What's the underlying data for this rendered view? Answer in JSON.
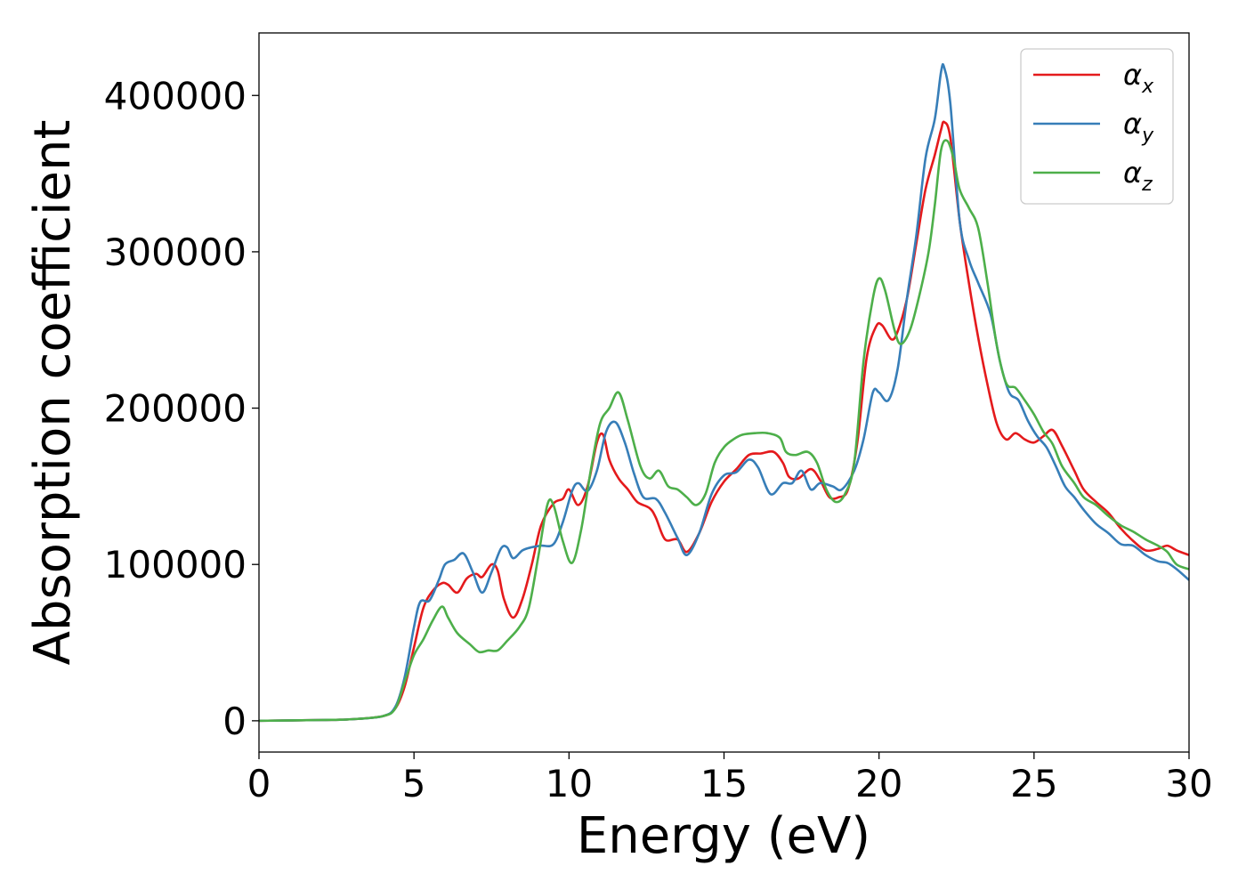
{
  "chart_data": {
    "type": "line",
    "title": "",
    "xlabel": "Energy (eV)",
    "ylabel": "Absorption coefficient",
    "xlim": [
      0,
      30
    ],
    "ylim": [
      -20000,
      440000
    ],
    "xticks": [
      0,
      5,
      10,
      15,
      20,
      25,
      30
    ],
    "yticks": [
      0,
      100000,
      200000,
      300000,
      400000
    ],
    "xtick_labels": [
      "0",
      "5",
      "10",
      "15",
      "20",
      "25",
      "30"
    ],
    "ytick_labels": [
      "0",
      "100000",
      "200000",
      "300000",
      "400000"
    ],
    "grid": false,
    "legend": {
      "position": "top-right"
    },
    "series": [
      {
        "name": "αx",
        "symbol": "α",
        "subscript": "x",
        "color": "#e41a1c",
        "points": [
          [
            0,
            0
          ],
          [
            2,
            500
          ],
          [
            3,
            1000
          ],
          [
            4,
            3000
          ],
          [
            4.4,
            8000
          ],
          [
            4.7,
            22000
          ],
          [
            5.0,
            47000
          ],
          [
            5.3,
            72000
          ],
          [
            5.6,
            83000
          ],
          [
            5.9,
            88000
          ],
          [
            6.1,
            87000
          ],
          [
            6.4,
            82000
          ],
          [
            6.7,
            91000
          ],
          [
            7.0,
            94000
          ],
          [
            7.2,
            92000
          ],
          [
            7.5,
            100000
          ],
          [
            7.7,
            96000
          ],
          [
            7.9,
            78000
          ],
          [
            8.2,
            66000
          ],
          [
            8.5,
            78000
          ],
          [
            8.8,
            100000
          ],
          [
            9.1,
            125000
          ],
          [
            9.5,
            139000
          ],
          [
            9.8,
            142000
          ],
          [
            10.0,
            148000
          ],
          [
            10.3,
            138000
          ],
          [
            10.6,
            150000
          ],
          [
            10.9,
            178000
          ],
          [
            11.1,
            183000
          ],
          [
            11.3,
            167000
          ],
          [
            11.6,
            155000
          ],
          [
            11.9,
            148000
          ],
          [
            12.2,
            140000
          ],
          [
            12.6,
            136000
          ],
          [
            12.8,
            130000
          ],
          [
            13.1,
            116000
          ],
          [
            13.5,
            116000
          ],
          [
            13.8,
            108000
          ],
          [
            14.2,
            120000
          ],
          [
            14.6,
            140000
          ],
          [
            15.0,
            153000
          ],
          [
            15.4,
            161000
          ],
          [
            15.8,
            170000
          ],
          [
            16.2,
            171000
          ],
          [
            16.6,
            172000
          ],
          [
            16.9,
            165000
          ],
          [
            17.1,
            156000
          ],
          [
            17.4,
            155000
          ],
          [
            17.8,
            161000
          ],
          [
            18.1,
            154000
          ],
          [
            18.4,
            143000
          ],
          [
            18.7,
            143000
          ],
          [
            19.0,
            148000
          ],
          [
            19.3,
            178000
          ],
          [
            19.6,
            232000
          ],
          [
            19.9,
            252000
          ],
          [
            20.1,
            253000
          ],
          [
            20.4,
            244000
          ],
          [
            20.6,
            249000
          ],
          [
            20.9,
            270000
          ],
          [
            21.2,
            305000
          ],
          [
            21.5,
            340000
          ],
          [
            21.8,
            362000
          ],
          [
            22.0,
            378000
          ],
          [
            22.1,
            383000
          ],
          [
            22.3,
            373000
          ],
          [
            22.6,
            320000
          ],
          [
            22.9,
            280000
          ],
          [
            23.2,
            245000
          ],
          [
            23.5,
            215000
          ],
          [
            23.8,
            190000
          ],
          [
            24.1,
            180000
          ],
          [
            24.4,
            184000
          ],
          [
            24.7,
            180000
          ],
          [
            25.0,
            178000
          ],
          [
            25.3,
            182000
          ],
          [
            25.6,
            186000
          ],
          [
            25.9,
            176000
          ],
          [
            26.3,
            160000
          ],
          [
            26.6,
            148000
          ],
          [
            27.0,
            140000
          ],
          [
            27.4,
            133000
          ],
          [
            27.8,
            123000
          ],
          [
            28.2,
            115000
          ],
          [
            28.6,
            109000
          ],
          [
            29.0,
            110000
          ],
          [
            29.3,
            112000
          ],
          [
            29.6,
            109000
          ],
          [
            30.0,
            106000
          ]
        ]
      },
      {
        "name": "αy",
        "symbol": "α",
        "subscript": "y",
        "color": "#377eb8",
        "points": [
          [
            0,
            0
          ],
          [
            2,
            500
          ],
          [
            3,
            1000
          ],
          [
            4,
            3000
          ],
          [
            4.4,
            9000
          ],
          [
            4.7,
            28000
          ],
          [
            5.0,
            60000
          ],
          [
            5.2,
            76000
          ],
          [
            5.5,
            77000
          ],
          [
            5.8,
            90000
          ],
          [
            6.0,
            100000
          ],
          [
            6.3,
            103000
          ],
          [
            6.6,
            107000
          ],
          [
            6.9,
            95000
          ],
          [
            7.2,
            82000
          ],
          [
            7.5,
            95000
          ],
          [
            7.8,
            110000
          ],
          [
            8.0,
            111000
          ],
          [
            8.2,
            104000
          ],
          [
            8.5,
            109000
          ],
          [
            8.8,
            111000
          ],
          [
            9.1,
            112000
          ],
          [
            9.5,
            113000
          ],
          [
            9.8,
            127000
          ],
          [
            10.1,
            147000
          ],
          [
            10.3,
            152000
          ],
          [
            10.6,
            147000
          ],
          [
            10.9,
            160000
          ],
          [
            11.2,
            185000
          ],
          [
            11.5,
            191000
          ],
          [
            11.8,
            178000
          ],
          [
            12.1,
            158000
          ],
          [
            12.4,
            143000
          ],
          [
            12.8,
            142000
          ],
          [
            13.1,
            133000
          ],
          [
            13.5,
            117000
          ],
          [
            13.8,
            106000
          ],
          [
            14.2,
            120000
          ],
          [
            14.6,
            145000
          ],
          [
            15.0,
            157000
          ],
          [
            15.4,
            159000
          ],
          [
            15.8,
            167000
          ],
          [
            16.1,
            162000
          ],
          [
            16.5,
            145000
          ],
          [
            16.9,
            152000
          ],
          [
            17.2,
            152000
          ],
          [
            17.5,
            160000
          ],
          [
            17.8,
            148000
          ],
          [
            18.1,
            152000
          ],
          [
            18.5,
            150000
          ],
          [
            18.8,
            148000
          ],
          [
            19.2,
            160000
          ],
          [
            19.5,
            180000
          ],
          [
            19.8,
            210000
          ],
          [
            20.0,
            210000
          ],
          [
            20.3,
            205000
          ],
          [
            20.6,
            225000
          ],
          [
            20.9,
            270000
          ],
          [
            21.2,
            310000
          ],
          [
            21.5,
            360000
          ],
          [
            21.8,
            385000
          ],
          [
            22.0,
            415000
          ],
          [
            22.1,
            418000
          ],
          [
            22.3,
            395000
          ],
          [
            22.6,
            320000
          ],
          [
            22.9,
            295000
          ],
          [
            23.2,
            280000
          ],
          [
            23.6,
            260000
          ],
          [
            23.9,
            230000
          ],
          [
            24.2,
            210000
          ],
          [
            24.5,
            205000
          ],
          [
            24.8,
            192000
          ],
          [
            25.1,
            182000
          ],
          [
            25.4,
            175000
          ],
          [
            25.7,
            163000
          ],
          [
            26.0,
            150000
          ],
          [
            26.3,
            143000
          ],
          [
            26.6,
            135000
          ],
          [
            27.0,
            126000
          ],
          [
            27.4,
            120000
          ],
          [
            27.8,
            113000
          ],
          [
            28.2,
            112000
          ],
          [
            28.6,
            106000
          ],
          [
            29.0,
            102000
          ],
          [
            29.3,
            101000
          ],
          [
            29.6,
            97000
          ],
          [
            30.0,
            90000
          ]
        ]
      },
      {
        "name": "αz",
        "symbol": "α",
        "subscript": "z",
        "color": "#4daf4a",
        "points": [
          [
            0,
            0
          ],
          [
            2,
            500
          ],
          [
            3,
            1000
          ],
          [
            4,
            3000
          ],
          [
            4.4,
            8000
          ],
          [
            4.7,
            25000
          ],
          [
            5.0,
            42000
          ],
          [
            5.3,
            52000
          ],
          [
            5.6,
            64000
          ],
          [
            5.9,
            73000
          ],
          [
            6.1,
            66000
          ],
          [
            6.4,
            56000
          ],
          [
            6.8,
            49000
          ],
          [
            7.1,
            44000
          ],
          [
            7.4,
            45000
          ],
          [
            7.7,
            45000
          ],
          [
            8.0,
            51000
          ],
          [
            8.4,
            60000
          ],
          [
            8.7,
            72000
          ],
          [
            9.0,
            104000
          ],
          [
            9.3,
            138000
          ],
          [
            9.5,
            138000
          ],
          [
            9.8,
            115000
          ],
          [
            10.1,
            101000
          ],
          [
            10.4,
            123000
          ],
          [
            10.7,
            160000
          ],
          [
            11.0,
            190000
          ],
          [
            11.3,
            200000
          ],
          [
            11.6,
            210000
          ],
          [
            11.9,
            192000
          ],
          [
            12.3,
            163000
          ],
          [
            12.6,
            155000
          ],
          [
            12.9,
            160000
          ],
          [
            13.2,
            150000
          ],
          [
            13.5,
            148000
          ],
          [
            13.8,
            143000
          ],
          [
            14.1,
            138000
          ],
          [
            14.4,
            145000
          ],
          [
            14.7,
            165000
          ],
          [
            15.0,
            175000
          ],
          [
            15.3,
            180000
          ],
          [
            15.6,
            183000
          ],
          [
            16.0,
            184000
          ],
          [
            16.4,
            184000
          ],
          [
            16.8,
            181000
          ],
          [
            17.0,
            172000
          ],
          [
            17.3,
            170000
          ],
          [
            17.7,
            172000
          ],
          [
            18.0,
            165000
          ],
          [
            18.3,
            148000
          ],
          [
            18.6,
            140000
          ],
          [
            18.9,
            145000
          ],
          [
            19.2,
            165000
          ],
          [
            19.5,
            230000
          ],
          [
            19.8,
            270000
          ],
          [
            20.0,
            283000
          ],
          [
            20.2,
            275000
          ],
          [
            20.5,
            250000
          ],
          [
            20.7,
            241000
          ],
          [
            21.0,
            250000
          ],
          [
            21.3,
            272000
          ],
          [
            21.6,
            300000
          ],
          [
            21.8,
            330000
          ],
          [
            22.0,
            365000
          ],
          [
            22.2,
            371000
          ],
          [
            22.4,
            360000
          ],
          [
            22.6,
            340000
          ],
          [
            22.9,
            328000
          ],
          [
            23.2,
            315000
          ],
          [
            23.5,
            280000
          ],
          [
            23.8,
            240000
          ],
          [
            24.1,
            216000
          ],
          [
            24.4,
            213000
          ],
          [
            24.7,
            205000
          ],
          [
            25.0,
            196000
          ],
          [
            25.3,
            185000
          ],
          [
            25.6,
            177000
          ],
          [
            25.9,
            163000
          ],
          [
            26.3,
            152000
          ],
          [
            26.6,
            143000
          ],
          [
            27.0,
            138000
          ],
          [
            27.4,
            131000
          ],
          [
            27.8,
            125000
          ],
          [
            28.2,
            121000
          ],
          [
            28.6,
            116000
          ],
          [
            29.0,
            112000
          ],
          [
            29.3,
            108000
          ],
          [
            29.6,
            100000
          ],
          [
            30.0,
            97000
          ]
        ]
      }
    ]
  }
}
